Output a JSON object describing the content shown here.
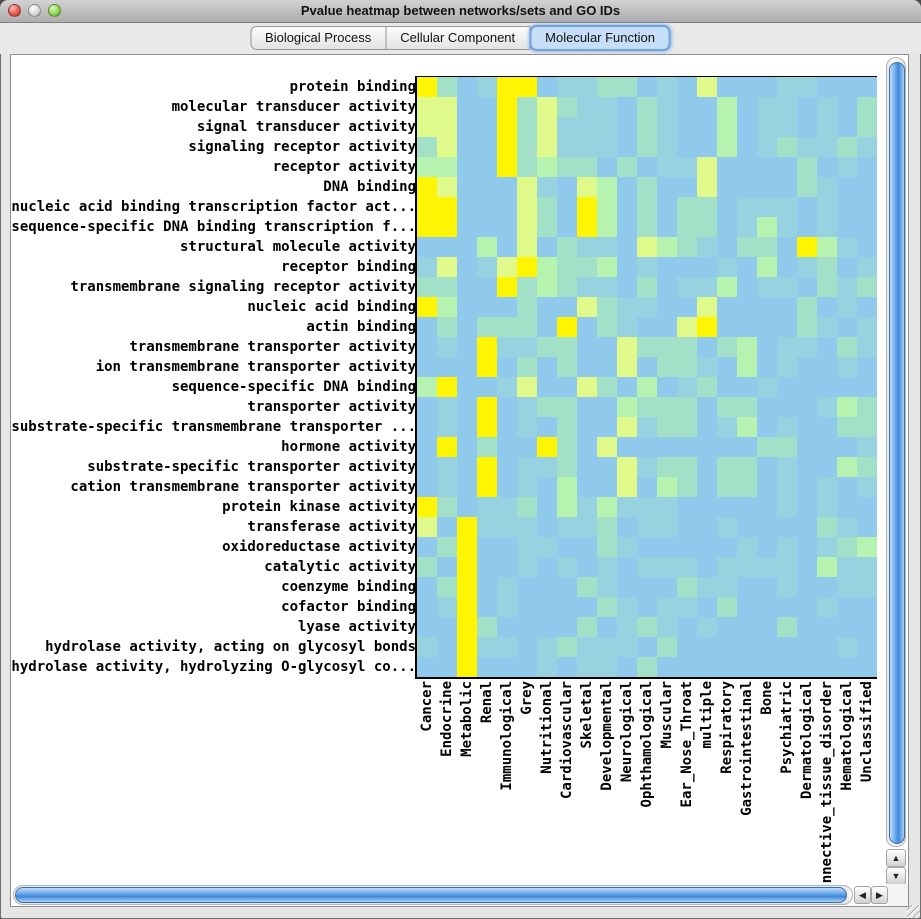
{
  "window": {
    "title": "Pvalue heatmap between networks/sets and GO IDs"
  },
  "tabs": [
    {
      "label": "Biological Process",
      "selected": false
    },
    {
      "label": "Cellular Component",
      "selected": false
    },
    {
      "label": "Molecular Function",
      "selected": true
    }
  ],
  "icons": {
    "scroll_up": "▲",
    "scroll_down": "▼",
    "scroll_left": "◀",
    "scroll_right": "▶"
  },
  "chart_data": {
    "type": "heatmap",
    "title": "Pvalue heatmap between networks/sets and GO IDs",
    "rows": [
      "protein binding",
      "molecular transducer activity",
      "signal transducer activity",
      "signaling receptor activity",
      "receptor activity",
      "DNA binding",
      "nucleic acid binding transcription factor act...",
      "sequence-specific DNA binding transcription f...",
      "structural molecule activity",
      "receptor binding",
      "transmembrane signaling receptor activity",
      "nucleic acid binding",
      "actin binding",
      "transmembrane transporter activity",
      "ion transmembrane transporter activity",
      "sequence-specific DNA binding",
      "transporter activity",
      "substrate-specific transmembrane transporter ...",
      "hormone activity",
      "substrate-specific transporter activity",
      "cation transmembrane transporter activity",
      "protein kinase activity",
      "transferase activity",
      "oxidoreductase activity",
      "catalytic activity",
      "coenzyme binding",
      "cofactor binding",
      "lyase activity",
      "hydrolase activity, acting on glycosyl bonds",
      "hydrolase activity, hydrolyzing O-glycosyl co..."
    ],
    "columns": [
      "Cancer",
      "Endocrine",
      "Metabolic",
      "Renal",
      "Immunological",
      "Grey",
      "Nutritional",
      "Cardiovascular",
      "Skeletal",
      "Developmental",
      "Neurological",
      "Ophthamological",
      "Muscular",
      "Ear_Nose_Throat",
      "multiple",
      "Respiratory",
      "Gastrointestinal",
      "Bone",
      "Psychiatric",
      "Dermatological",
      "Connective_tissue_disorder",
      "Hematological",
      "Unclassified"
    ],
    "palette": {
      "0": "#8FCAEC",
      "1": "#96D2DF",
      "2": "#A2E0C8",
      "3": "#B7F3B0",
      "4": "#E0F98B",
      "5": "#FDF502"
    },
    "legend": "cell color encodes p-value significance: 5=bright yellow (strongest), 4=yellow-green, 3=pale green, 2=teal, 1=blue-teal, 0=light blue (weakest)",
    "matrix": [
      "52015501122010400011000",
      "44005242110210030110102",
      "44005241110210030110102",
      "24005241110210030121121",
      "33005232202011400002010",
      "54000410430200400002100",
      "55000420530202201110100",
      "55000420530202201310100",
      "00030402110432102205310",
      "14014532230100010301201",
      "22005232110201130110212",
      "53000200421100400002010",
      "02022205021004500002101",
      "01051122004222023011021",
      "00050202004022103010010",
      "35001400420301200100000",
      "01050122003222022000132",
      "01050102004122013010022",
      "05020052040000000220001",
      "01050112004122022010032",
      "01050103004032022010101",
      "52011203131110000010100",
      "40511101120110010000210",
      "02500110021000001010123",
      "20500101010111011110311",
      "02501000210002110010011",
      "01501000021011020000100",
      "00520000201210100020000",
      "10511012111020000000010",
      "00500010110200000000000"
    ]
  }
}
